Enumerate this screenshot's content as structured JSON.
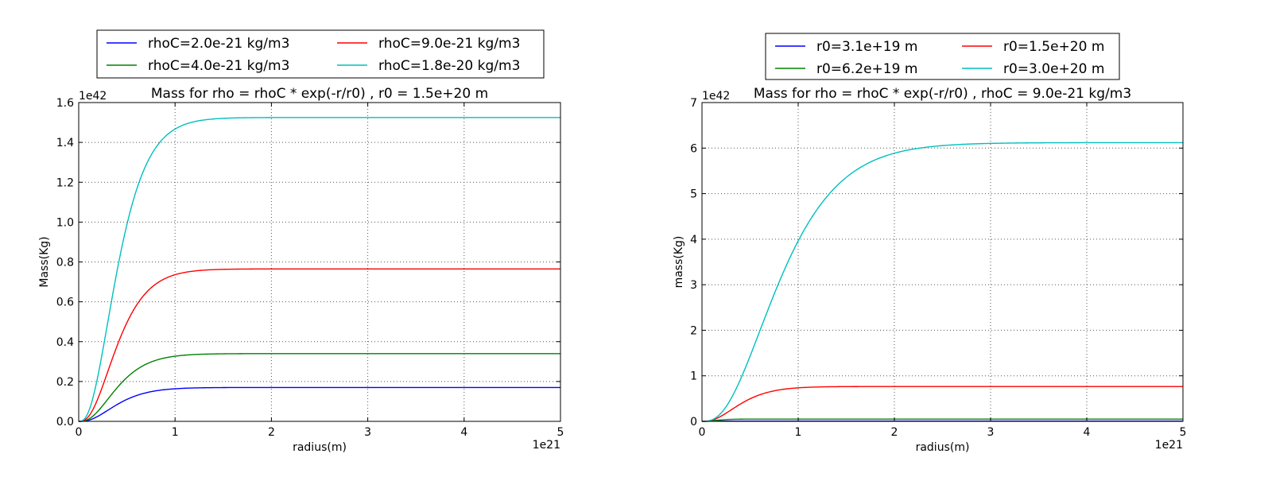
{
  "chart_data": [
    {
      "type": "line",
      "title": "Mass for rho = rhoC * exp(-r/r0) , r0 = 1.5e+20 m",
      "xlabel": "radius(m)",
      "ylabel": "Mass(Kg)",
      "x_offset_label": "1e21",
      "y_offset_label": "1e42",
      "xlim": [
        0,
        5
      ],
      "ylim": [
        0,
        1.6
      ],
      "x_ticks": [
        0,
        1,
        2,
        3,
        4,
        5
      ],
      "x_tick_labels": [
        "0",
        "1",
        "2",
        "3",
        "4",
        "5"
      ],
      "y_ticks": [
        0,
        0.2,
        0.4,
        0.6,
        0.8,
        1.0,
        1.2,
        1.4,
        1.6
      ],
      "y_tick_labels": [
        "0.0",
        "0.2",
        "0.4",
        "0.6",
        "0.8",
        "1.0",
        "1.2",
        "1.4",
        "1.6"
      ],
      "grid": true,
      "legend_position": "above plot",
      "legend_columns": 2,
      "series": [
        {
          "name": "rhoC=2.0e-21 kg/m3",
          "color": "#0000ff",
          "r0": 0.15,
          "plateau": 0.17
        },
        {
          "name": "rhoC=4.0e-21 kg/m3",
          "color": "#008000",
          "r0": 0.15,
          "plateau": 0.34
        },
        {
          "name": "rhoC=9.0e-21 kg/m3",
          "color": "#ff0000",
          "r0": 0.15,
          "plateau": 0.765
        },
        {
          "name": "rhoC=1.8e-20 kg/m3",
          "color": "#00bfbf",
          "r0": 0.15,
          "plateau": 1.525
        }
      ]
    },
    {
      "type": "line",
      "title": "Mass for rho = rhoC * exp(-r/r0) , rhoC = 9.0e-21 kg/m3",
      "xlabel": "radius(m)",
      "ylabel": "mass(Kg)",
      "x_offset_label": "1e21",
      "y_offset_label": "1e42",
      "xlim": [
        0,
        5
      ],
      "ylim": [
        0,
        7
      ],
      "x_ticks": [
        0,
        1,
        2,
        3,
        4,
        5
      ],
      "x_tick_labels": [
        "0",
        "1",
        "2",
        "3",
        "4",
        "5"
      ],
      "y_ticks": [
        0,
        1,
        2,
        3,
        4,
        5,
        6,
        7
      ],
      "y_tick_labels": [
        "0",
        "1",
        "2",
        "3",
        "4",
        "5",
        "6",
        "7"
      ],
      "grid": true,
      "legend_position": "above plot",
      "legend_columns": 2,
      "series": [
        {
          "name": "r0=3.1e+19 m",
          "color": "#0000ff",
          "r0": 0.031,
          "plateau": 0.006
        },
        {
          "name": "r0=6.2e+19 m",
          "color": "#008000",
          "r0": 0.062,
          "plateau": 0.05
        },
        {
          "name": "r0=1.5e+20 m",
          "color": "#ff0000",
          "r0": 0.15,
          "plateau": 0.765
        },
        {
          "name": "r0=3.0e+20 m",
          "color": "#00bfbf",
          "r0": 0.3,
          "plateau": 6.12
        }
      ]
    }
  ]
}
